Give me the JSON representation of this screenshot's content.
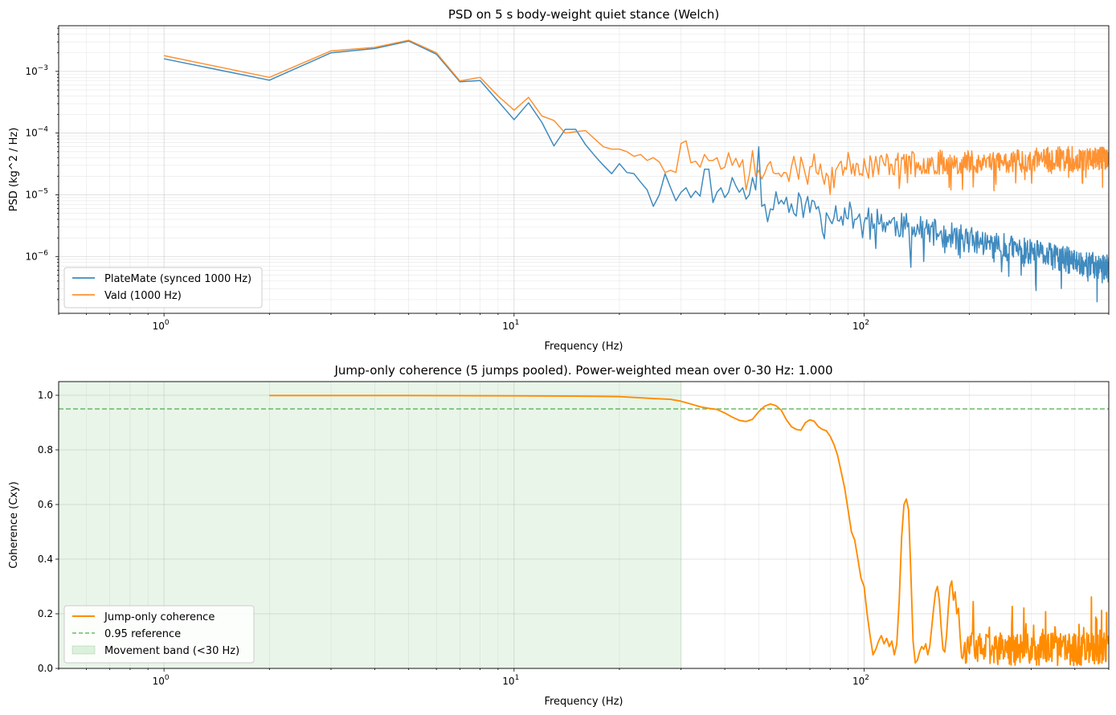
{
  "chart_data": [
    {
      "type": "line",
      "title": "PSD on 5 s body-weight quiet stance (Welch)",
      "xlabel": "Frequency (Hz)",
      "ylabel": "PSD (kg^2 / Hz)",
      "xscale": "log",
      "yscale": "log",
      "xlim": [
        0.5,
        500
      ],
      "ylim": [
        1.2e-07,
        0.0055
      ],
      "xticks": [
        {
          "v": 1,
          "b": "10",
          "e": "0"
        },
        {
          "v": 10,
          "b": "10",
          "e": "1"
        },
        {
          "v": 100,
          "b": "10",
          "e": "2"
        }
      ],
      "yticks": [
        {
          "v": 1e-06,
          "b": "10",
          "e": "−6"
        },
        {
          "v": 1e-05,
          "b": "10",
          "e": "−5"
        },
        {
          "v": 0.0001,
          "b": "10",
          "e": "−4"
        },
        {
          "v": 0.001,
          "b": "10",
          "e": "−3"
        }
      ],
      "grid": true,
      "legend_position": "lower-left",
      "series": [
        {
          "name": "PlateMate (synced 1000 Hz)",
          "color": "#1f77b4",
          "points": [
            [
              1,
              0.0016
            ],
            [
              2,
              0.00072
            ],
            [
              3,
              0.002
            ],
            [
              4,
              0.00235
            ],
            [
              5,
              0.0031
            ],
            [
              6,
              0.0019
            ],
            [
              7,
              0.00068
            ],
            [
              8,
              0.00071
            ],
            [
              9,
              0.00033
            ],
            [
              10,
              0.000165
            ],
            [
              11,
              0.00031
            ],
            [
              12,
              0.00015
            ],
            [
              13,
              6.2e-05
            ],
            [
              14,
              0.000115
            ],
            [
              15,
              0.000115
            ],
            [
              16,
              6.5e-05
            ],
            [
              17,
              4.3e-05
            ],
            [
              18,
              3e-05
            ],
            [
              19,
              2.2e-05
            ],
            [
              20,
              3.2e-05
            ],
            [
              21,
              2.3e-05
            ],
            [
              22,
              2.2e-05
            ],
            [
              23,
              1.6e-05
            ],
            [
              24,
              1.2e-05
            ],
            [
              25,
              6.5e-06
            ],
            [
              26,
              1e-05
            ],
            [
              27,
              2.2e-05
            ],
            [
              28,
              1.3e-05
            ],
            [
              29,
              8e-06
            ],
            [
              30,
              1.1e-05
            ],
            [
              31,
              1.3e-05
            ],
            [
              32,
              9e-06
            ],
            [
              33,
              1.15e-05
            ],
            [
              34,
              9.5e-06
            ],
            [
              35,
              2.6e-05
            ],
            [
              36,
              2.6e-05
            ],
            [
              37,
              7.5e-06
            ],
            [
              38,
              1.1e-05
            ],
            [
              39,
              1.3e-05
            ],
            [
              40,
              9e-06
            ],
            [
              41,
              1.1e-05
            ],
            [
              42,
              1.9e-05
            ],
            [
              43,
              1.4e-05
            ],
            [
              44,
              1.1e-05
            ],
            [
              45,
              1.3e-05
            ],
            [
              46,
              8.5e-06
            ],
            [
              47,
              1e-05
            ],
            [
              48,
              1.9e-05
            ],
            [
              49,
              1.2e-05
            ],
            [
              50,
              6e-05
            ],
            [
              51,
              6.5e-06
            ]
          ],
          "noise": {
            "from": 51,
            "to": 500,
            "step": 1,
            "startLog": -5.03,
            "endLog": -6.2,
            "amp": 0.22,
            "spikes": 0.45,
            "seed": 11
          }
        },
        {
          "name": "Vald (1000 Hz)",
          "color": "#ff7f0e",
          "points": [
            [
              1,
              0.0018
            ],
            [
              2,
              0.0008
            ],
            [
              3,
              0.00215
            ],
            [
              4,
              0.00245
            ],
            [
              5,
              0.0032
            ],
            [
              6,
              0.002
            ],
            [
              7,
              0.0007
            ],
            [
              8,
              0.0008
            ],
            [
              9,
              0.0004
            ],
            [
              10,
              0.000235
            ],
            [
              11,
              0.00038
            ],
            [
              12,
              0.00019
            ],
            [
              13,
              0.00016
            ],
            [
              14,
              0.0001
            ],
            [
              15,
              0.000105
            ],
            [
              16,
              0.00011
            ],
            [
              17,
              8e-05
            ],
            [
              18,
              6e-05
            ],
            [
              19,
              5.5e-05
            ],
            [
              20,
              5.5e-05
            ],
            [
              21,
              5e-05
            ],
            [
              22,
              4.2e-05
            ],
            [
              23,
              4.5e-05
            ],
            [
              24,
              3.6e-05
            ],
            [
              25,
              4e-05
            ],
            [
              26,
              3.4e-05
            ],
            [
              27,
              2.3e-05
            ],
            [
              28,
              2.5e-05
            ],
            [
              29,
              2.3e-05
            ],
            [
              30,
              6.8e-05
            ],
            [
              31,
              7.5e-05
            ],
            [
              32,
              3.3e-05
            ],
            [
              33,
              3.5e-05
            ],
            [
              34,
              2.8e-05
            ],
            [
              35,
              4.5e-05
            ],
            [
              36,
              3.6e-05
            ],
            [
              37,
              3.6e-05
            ],
            [
              38,
              4e-05
            ],
            [
              39,
              2.6e-05
            ],
            [
              40,
              2.8e-05
            ],
            [
              41,
              4.8e-05
            ],
            [
              42,
              3e-05
            ],
            [
              43,
              3.9e-05
            ],
            [
              44,
              2.8e-05
            ],
            [
              45,
              3.7e-05
            ],
            [
              46,
              1.2e-05
            ],
            [
              47,
              2.1e-05
            ],
            [
              48,
              5.2e-05
            ],
            [
              49,
              2e-05
            ],
            [
              50,
              2.5e-05
            ],
            [
              51,
              1.8e-05
            ]
          ],
          "noise": {
            "from": 51,
            "to": 500,
            "step": 1,
            "startLog": -4.55,
            "endLog": -4.4,
            "amp": 0.2,
            "spikes": 0.35,
            "seed": 23
          }
        }
      ]
    },
    {
      "type": "line",
      "title": "Jump-only coherence (5 jumps pooled). Power-weighted mean over 0-30 Hz: 1.000",
      "xlabel": "Frequency (Hz)",
      "ylabel": "Coherence (Cxy)",
      "xscale": "log",
      "yscale": "linear",
      "xlim": [
        0.5,
        500
      ],
      "ylim": [
        0.0,
        1.05
      ],
      "xticks": [
        {
          "v": 1,
          "b": "10",
          "e": "0"
        },
        {
          "v": 10,
          "b": "10",
          "e": "1"
        },
        {
          "v": 100,
          "b": "10",
          "e": "2"
        }
      ],
      "yticks": [
        {
          "v": 0.0,
          "label": "0.0"
        },
        {
          "v": 0.2,
          "label": "0.2"
        },
        {
          "v": 0.4,
          "label": "0.4"
        },
        {
          "v": 0.6,
          "label": "0.6"
        },
        {
          "v": 0.8,
          "label": "0.8"
        },
        {
          "v": 1.0,
          "label": "1.0"
        }
      ],
      "grid": true,
      "legend_position": "lower-left",
      "reference": {
        "name": "0.95 reference",
        "value": 0.95,
        "color": "#2ca02c"
      },
      "band": {
        "name": "Movement band (<30 Hz)",
        "from": 0.5,
        "to": 30,
        "color": "#2ca02c"
      },
      "series": [
        {
          "name": "Jump-only coherence",
          "color": "#ff8c00",
          "points": [
            [
              2,
              0.999
            ],
            [
              5,
              0.999
            ],
            [
              10,
              0.998
            ],
            [
              15,
              0.997
            ],
            [
              20,
              0.995
            ],
            [
              25,
              0.988
            ],
            [
              28,
              0.985
            ],
            [
              30,
              0.978
            ],
            [
              32,
              0.968
            ],
            [
              34,
              0.958
            ],
            [
              36,
              0.952
            ],
            [
              38,
              0.948
            ],
            [
              40,
              0.935
            ],
            [
              42,
              0.92
            ],
            [
              44,
              0.908
            ],
            [
              46,
              0.904
            ],
            [
              48,
              0.912
            ],
            [
              50,
              0.94
            ],
            [
              52,
              0.96
            ],
            [
              54,
              0.968
            ],
            [
              56,
              0.962
            ],
            [
              58,
              0.945
            ],
            [
              60,
              0.91
            ],
            [
              62,
              0.885
            ],
            [
              64,
              0.875
            ],
            [
              66,
              0.872
            ],
            [
              68,
              0.9
            ],
            [
              70,
              0.91
            ],
            [
              72,
              0.905
            ],
            [
              74,
              0.885
            ],
            [
              76,
              0.875
            ],
            [
              78,
              0.87
            ],
            [
              80,
              0.85
            ],
            [
              82,
              0.82
            ],
            [
              84,
              0.78
            ],
            [
              86,
              0.72
            ],
            [
              88,
              0.66
            ],
            [
              90,
              0.58
            ],
            [
              92,
              0.5
            ],
            [
              94,
              0.47
            ],
            [
              96,
              0.4
            ],
            [
              98,
              0.33
            ],
            [
              100,
              0.3
            ],
            [
              102,
              0.2
            ],
            [
              104,
              0.12
            ],
            [
              106,
              0.05
            ],
            [
              108,
              0.07
            ],
            [
              110,
              0.1
            ],
            [
              112,
              0.12
            ],
            [
              114,
              0.09
            ],
            [
              116,
              0.11
            ],
            [
              118,
              0.08
            ],
            [
              120,
              0.1
            ],
            [
              122,
              0.05
            ],
            [
              124,
              0.09
            ],
            [
              126,
              0.25
            ],
            [
              128,
              0.48
            ],
            [
              130,
              0.6
            ],
            [
              132,
              0.62
            ],
            [
              134,
              0.58
            ],
            [
              136,
              0.35
            ],
            [
              138,
              0.1
            ],
            [
              140,
              0.02
            ],
            [
              142,
              0.03
            ],
            [
              144,
              0.06
            ],
            [
              146,
              0.08
            ],
            [
              148,
              0.07
            ],
            [
              150,
              0.09
            ],
            [
              152,
              0.05
            ],
            [
              154,
              0.08
            ],
            [
              156,
              0.15
            ],
            [
              158,
              0.22
            ],
            [
              160,
              0.28
            ],
            [
              162,
              0.3
            ],
            [
              164,
              0.25
            ],
            [
              166,
              0.15
            ],
            [
              168,
              0.07
            ],
            [
              170,
              0.06
            ],
            [
              172,
              0.12
            ],
            [
              174,
              0.22
            ],
            [
              176,
              0.3
            ],
            [
              178,
              0.32
            ],
            [
              180,
              0.25
            ],
            [
              182,
              0.28
            ],
            [
              184,
              0.2
            ],
            [
              186,
              0.22
            ],
            [
              188,
              0.12
            ]
          ],
          "noise": {
            "from": 189,
            "to": 500,
            "step": 1,
            "base": 0.07,
            "amp": 0.06,
            "spikes": 0.11,
            "min": 0.0,
            "seed": 37
          }
        }
      ]
    }
  ]
}
